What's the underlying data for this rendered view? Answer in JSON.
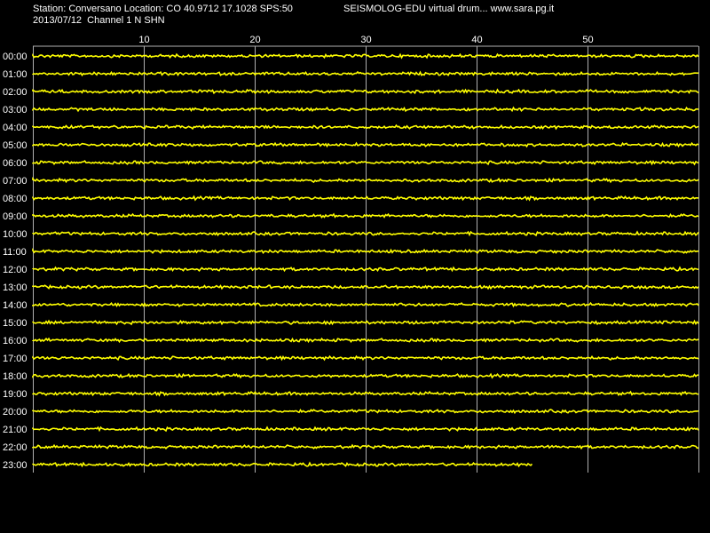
{
  "header": {
    "station_line": "Station: Conversano Location: CO 40.9712 17.1028 SPS:50",
    "date_line": "2013/07/12  Channel 1 N SHN",
    "software_line": "SEISMOLOG-EDU virtual drum... www.sara.pg.it"
  },
  "colors": {
    "background": "#000000",
    "trace": "#ffff00",
    "grid": "#b0b0b0",
    "text": "#ffffff"
  },
  "chart_data": {
    "type": "line",
    "title": "",
    "xlabel": "",
    "ylabel": "",
    "xlim": [
      0,
      60
    ],
    "x_ticks": [
      10,
      20,
      30,
      40,
      50
    ],
    "x_tick_labels": [
      "10",
      "20",
      "30",
      "40",
      "50"
    ],
    "grid": true,
    "rows": [
      {
        "label": "00:00",
        "end_minute": 60
      },
      {
        "label": "01:00",
        "end_minute": 60
      },
      {
        "label": "02:00",
        "end_minute": 60
      },
      {
        "label": "03:00",
        "end_minute": 60
      },
      {
        "label": "04:00",
        "end_minute": 60
      },
      {
        "label": "05:00",
        "end_minute": 60
      },
      {
        "label": "06:00",
        "end_minute": 60
      },
      {
        "label": "07:00",
        "end_minute": 60
      },
      {
        "label": "08:00",
        "end_minute": 60
      },
      {
        "label": "09:00",
        "end_minute": 60
      },
      {
        "label": "10:00",
        "end_minute": 60
      },
      {
        "label": "11:00",
        "end_minute": 60
      },
      {
        "label": "12:00",
        "end_minute": 60
      },
      {
        "label": "13:00",
        "end_minute": 60
      },
      {
        "label": "14:00",
        "end_minute": 60
      },
      {
        "label": "15:00",
        "end_minute": 60
      },
      {
        "label": "16:00",
        "end_minute": 60
      },
      {
        "label": "17:00",
        "end_minute": 60
      },
      {
        "label": "18:00",
        "end_minute": 60
      },
      {
        "label": "19:00",
        "end_minute": 60
      },
      {
        "label": "20:00",
        "end_minute": 60
      },
      {
        "label": "21:00",
        "end_minute": 60
      },
      {
        "label": "22:00",
        "end_minute": 60
      },
      {
        "label": "23:00",
        "end_minute": 45
      }
    ]
  }
}
